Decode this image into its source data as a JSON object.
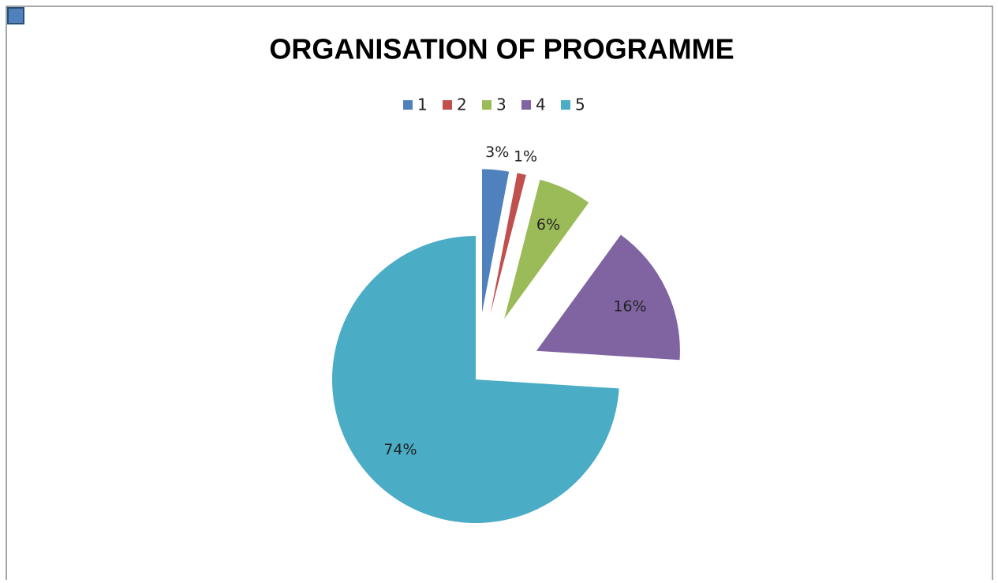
{
  "chart_data": {
    "type": "pie",
    "title": "ORGANISATION OF PROGRAMME",
    "categories": [
      "1",
      "2",
      "3",
      "4",
      "5"
    ],
    "series": [
      {
        "values": [
          3,
          1,
          6,
          16,
          74
        ],
        "value_labels": [
          "3%",
          "1%",
          "6%",
          "16%",
          "74%"
        ],
        "colors": [
          "#4f81bd",
          "#c0504d",
          "#9bbb59",
          "#8064a2",
          "#4bacc6"
        ]
      }
    ],
    "legend": "top"
  }
}
